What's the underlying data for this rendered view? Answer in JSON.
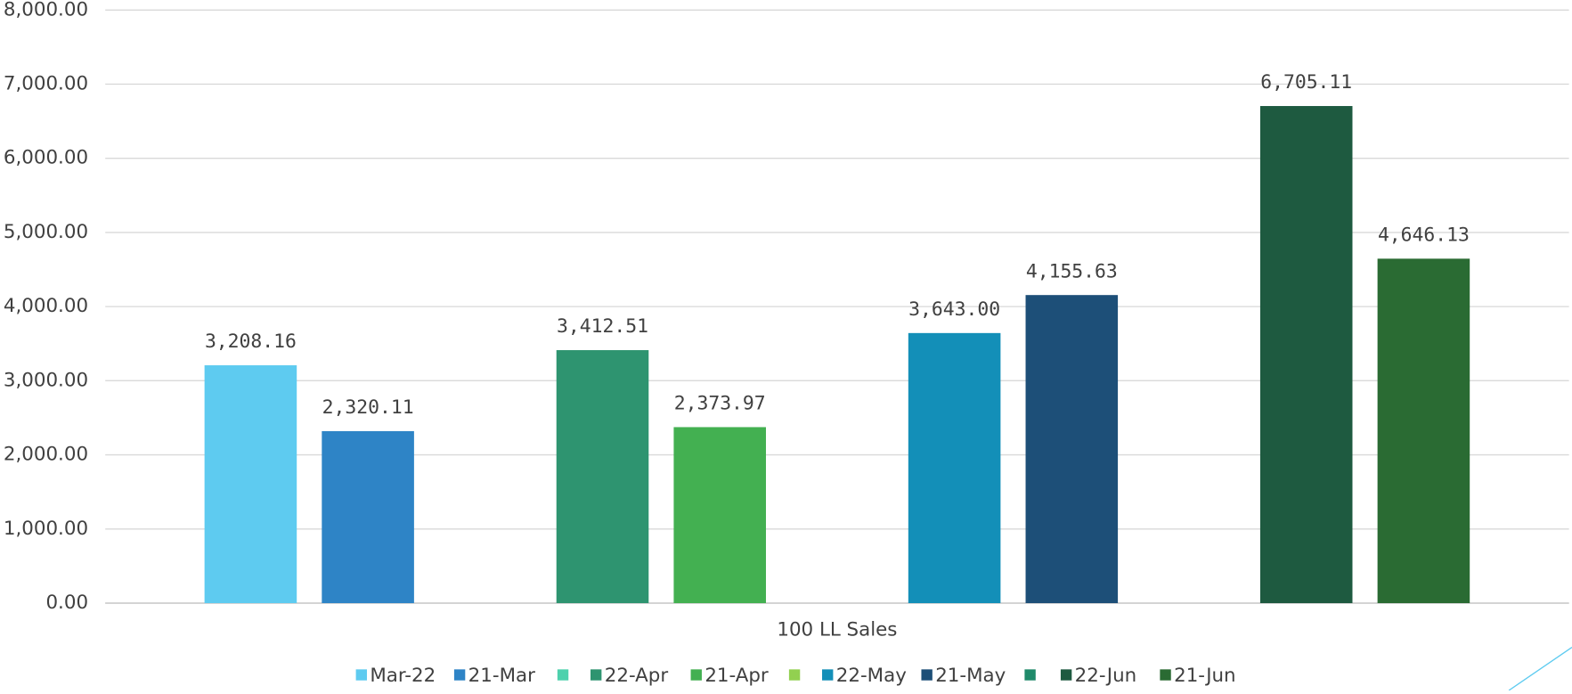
{
  "chart_data": {
    "type": "bar",
    "categories": [
      "100 LL Sales"
    ],
    "series": [
      {
        "name": "Mar-22",
        "color": "#5ecbf0",
        "values": [
          3208.16
        ],
        "value_labels": [
          "3,208.16"
        ]
      },
      {
        "name": "21-Mar",
        "color": "#2e84c6",
        "values": [
          2320.11
        ],
        "value_labels": [
          "2,320.11"
        ]
      },
      {
        "name": null,
        "color": "#4ed1ad",
        "values": [
          null
        ]
      },
      {
        "name": "22-Apr",
        "color": "#2e9470",
        "values": [
          3412.51
        ],
        "value_labels": [
          "3,412.51"
        ]
      },
      {
        "name": "21-Apr",
        "color": "#43b051",
        "values": [
          2373.97
        ],
        "value_labels": [
          "2,373.97"
        ]
      },
      {
        "name": null,
        "color": "#92d050",
        "values": [
          null
        ]
      },
      {
        "name": "22-May",
        "color": "#138fb8",
        "values": [
          3643.0
        ],
        "value_labels": [
          "3,643.00"
        ]
      },
      {
        "name": "21-May",
        "color": "#1d4f78",
        "values": [
          4155.63
        ],
        "value_labels": [
          "4,155.63"
        ]
      },
      {
        "name": null,
        "color": "#1f8a6a",
        "values": [
          null
        ]
      },
      {
        "name": "22-Jun",
        "color": "#1e5a40",
        "values": [
          6705.11
        ],
        "value_labels": [
          "6,705.11"
        ]
      },
      {
        "name": "21-Jun",
        "color": "#2a6b33",
        "values": [
          4646.13
        ],
        "value_labels": [
          "4,646.13"
        ]
      }
    ],
    "ylim": [
      0,
      8000
    ],
    "yticks": [
      {
        "value": 0,
        "label": "0.00"
      },
      {
        "value": 1000,
        "label": "1,000.00"
      },
      {
        "value": 2000,
        "label": "2,000.00"
      },
      {
        "value": 3000,
        "label": "3,000.00"
      },
      {
        "value": 4000,
        "label": "4,000.00"
      },
      {
        "value": 5000,
        "label": "5,000.00"
      },
      {
        "value": 6000,
        "label": "6,000.00"
      },
      {
        "value": 7000,
        "label": "7,000.00"
      },
      {
        "value": 8000,
        "label": "8,000.00"
      }
    ],
    "grid": true,
    "legend": "bottom"
  }
}
